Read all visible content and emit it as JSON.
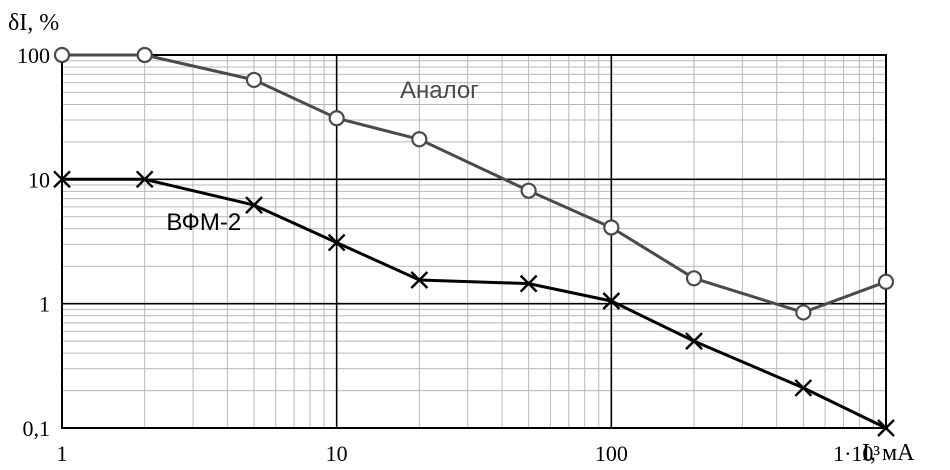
{
  "chart_data": {
    "type": "line",
    "x_scale": "log",
    "y_scale": "log",
    "xlim": [
      1,
      1000
    ],
    "ylim": [
      0.1,
      100
    ],
    "grid": true,
    "ylabel": "δI, %",
    "xlabel": "I, мА",
    "x_ticks": [
      {
        "value": 1,
        "label": "1"
      },
      {
        "value": 10,
        "label": "10"
      },
      {
        "value": 100,
        "label": "100"
      },
      {
        "value": 1000,
        "label": "1·10³"
      }
    ],
    "y_ticks": [
      {
        "value": 0.1,
        "label": "0,1"
      },
      {
        "value": 1,
        "label": "1"
      },
      {
        "value": 10,
        "label": "10"
      },
      {
        "value": 100,
        "label": "100"
      }
    ],
    "series": [
      {
        "name": "Аналог",
        "color": "#4a4a4a",
        "marker": "circle",
        "label_at": [
          17,
          45
        ],
        "x": [
          1,
          2,
          5,
          10,
          20,
          50,
          100,
          200,
          500,
          1000
        ],
        "y": [
          100,
          100,
          63,
          31,
          21,
          8.1,
          4.1,
          1.6,
          0.85,
          1.5
        ]
      },
      {
        "name": "ВФМ-2",
        "color": "#000000",
        "marker": "cross",
        "label_at": [
          2.4,
          3.9
        ],
        "x": [
          1,
          2,
          5,
          10,
          20,
          50,
          100,
          200,
          500,
          1000
        ],
        "y": [
          10,
          10,
          6.2,
          3.1,
          1.55,
          1.45,
          1.05,
          0.5,
          0.21,
          0.1
        ]
      }
    ]
  }
}
